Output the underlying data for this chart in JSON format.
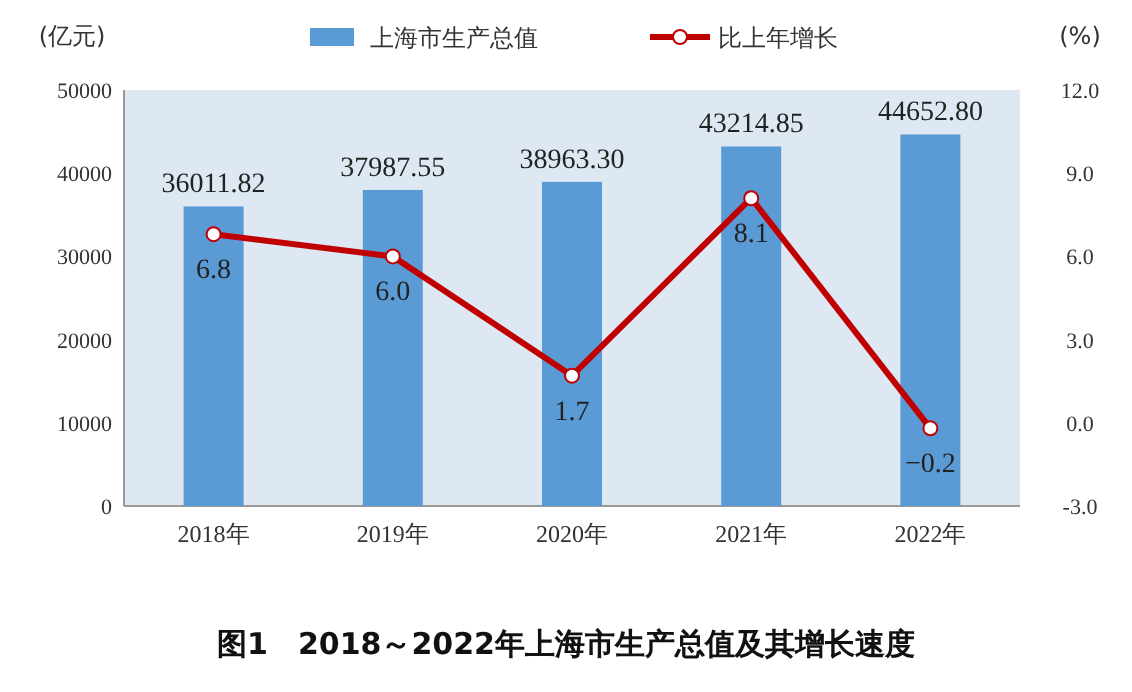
{
  "chart_data": {
    "type": "bar",
    "title": "图1　2018～2022年上海市生产总值及其增长速度",
    "categories": [
      "2018年",
      "2019年",
      "2020年",
      "2021年",
      "2022年"
    ],
    "series": [
      {
        "name": "上海市生产总值",
        "color": "#5b9bd5",
        "values": [
          36011.82,
          37987.55,
          38963.3,
          43214.85,
          44652.8
        ],
        "value_labels": [
          "36011.82",
          "37987.55",
          "38963.30",
          "43214.85",
          "44652.80"
        ]
      },
      {
        "name": "比上年增长",
        "type": "line",
        "axis": "y2",
        "color": "#c00000",
        "marker": "circle",
        "values": [
          6.8,
          6.0,
          1.7,
          8.1,
          -0.2
        ],
        "value_labels": [
          "6.8",
          "6.0",
          "1.7",
          "8.1",
          "−0.2"
        ]
      }
    ],
    "ylabel": "(亿元)",
    "y2label": "(%)",
    "ylim": [
      0,
      50000
    ],
    "yticks": [
      0,
      10000,
      20000,
      30000,
      40000,
      50000
    ],
    "y2lim": [
      -3,
      12
    ],
    "y2ticks": [
      {
        "value": -3,
        "label": "-3.0"
      },
      {
        "value": 0,
        "label": "0.0"
      },
      {
        "value": 3,
        "label": "3.0"
      },
      {
        "value": 6,
        "label": "6.0"
      },
      {
        "value": 9,
        "label": "9.0"
      },
      {
        "value": 12,
        "label": "12.0"
      }
    ],
    "legend": "top",
    "grid": false
  }
}
